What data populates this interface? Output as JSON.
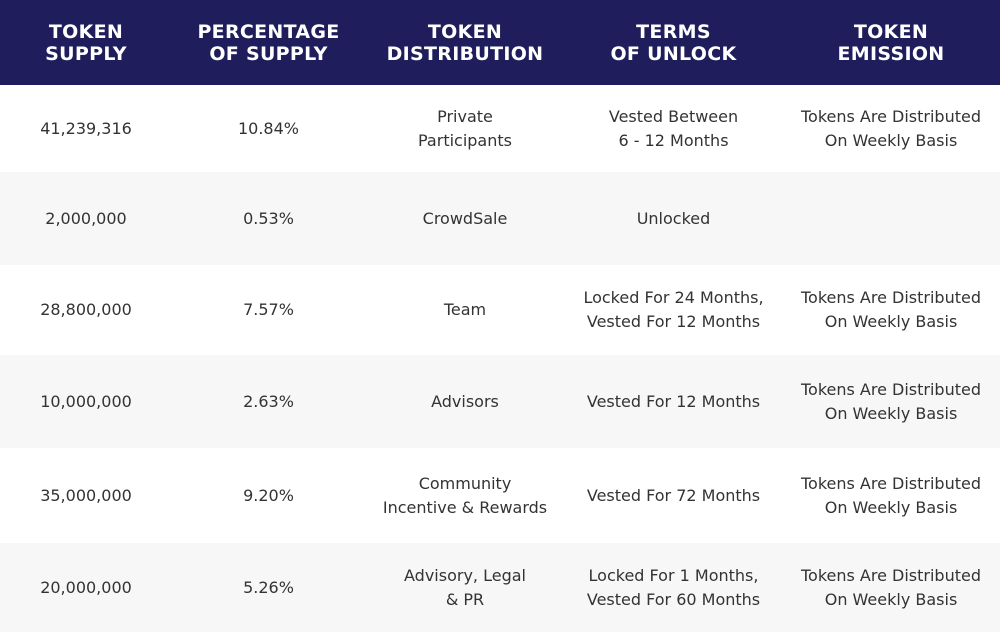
{
  "table": {
    "header": [
      [
        "TOKEN",
        "SUPPLY"
      ],
      [
        "PERCENTAGE",
        "OF SUPPLY"
      ],
      [
        "TOKEN",
        "DISTRIBUTION"
      ],
      [
        "TERMS",
        "OF UNLOCK"
      ],
      [
        "TOKEN",
        "EMISSION"
      ]
    ],
    "rows": [
      [
        [
          "41,239,316"
        ],
        [
          "10.84%"
        ],
        [
          "Private",
          "Participants"
        ],
        [
          "Vested Between",
          "6 - 12 Months"
        ],
        [
          "Tokens Are Distributed",
          "On Weekly Basis"
        ]
      ],
      [
        [
          "2,000,000"
        ],
        [
          "0.53%"
        ],
        [
          "CrowdSale"
        ],
        [
          "Unlocked"
        ],
        null
      ],
      [
        [
          "28,800,000"
        ],
        [
          "7.57%"
        ],
        [
          "Team"
        ],
        [
          "Locked For 24 Months,",
          "Vested For 12 Months"
        ],
        [
          "Tokens Are Distributed",
          "On Weekly Basis"
        ]
      ],
      [
        [
          "10,000,000"
        ],
        [
          "2.63%"
        ],
        [
          "Advisors"
        ],
        [
          "Vested For 12 Months"
        ],
        [
          "Tokens Are Distributed",
          "On Weekly Basis"
        ]
      ],
      [
        [
          "35,000,000"
        ],
        [
          "9.20%"
        ],
        [
          "Community",
          "Incentive & Rewards"
        ],
        [
          "Vested For 72 Months"
        ],
        [
          "Tokens Are Distributed",
          "On Weekly Basis"
        ]
      ],
      [
        [
          "20,000,000"
        ],
        [
          "5.26%"
        ],
        [
          "Advisory, Legal",
          "& PR"
        ],
        [
          "Locked For 1 Months,",
          "Vested For 60 Months"
        ],
        [
          "Tokens Are Distributed",
          "On Weekly Basis"
        ]
      ]
    ]
  }
}
